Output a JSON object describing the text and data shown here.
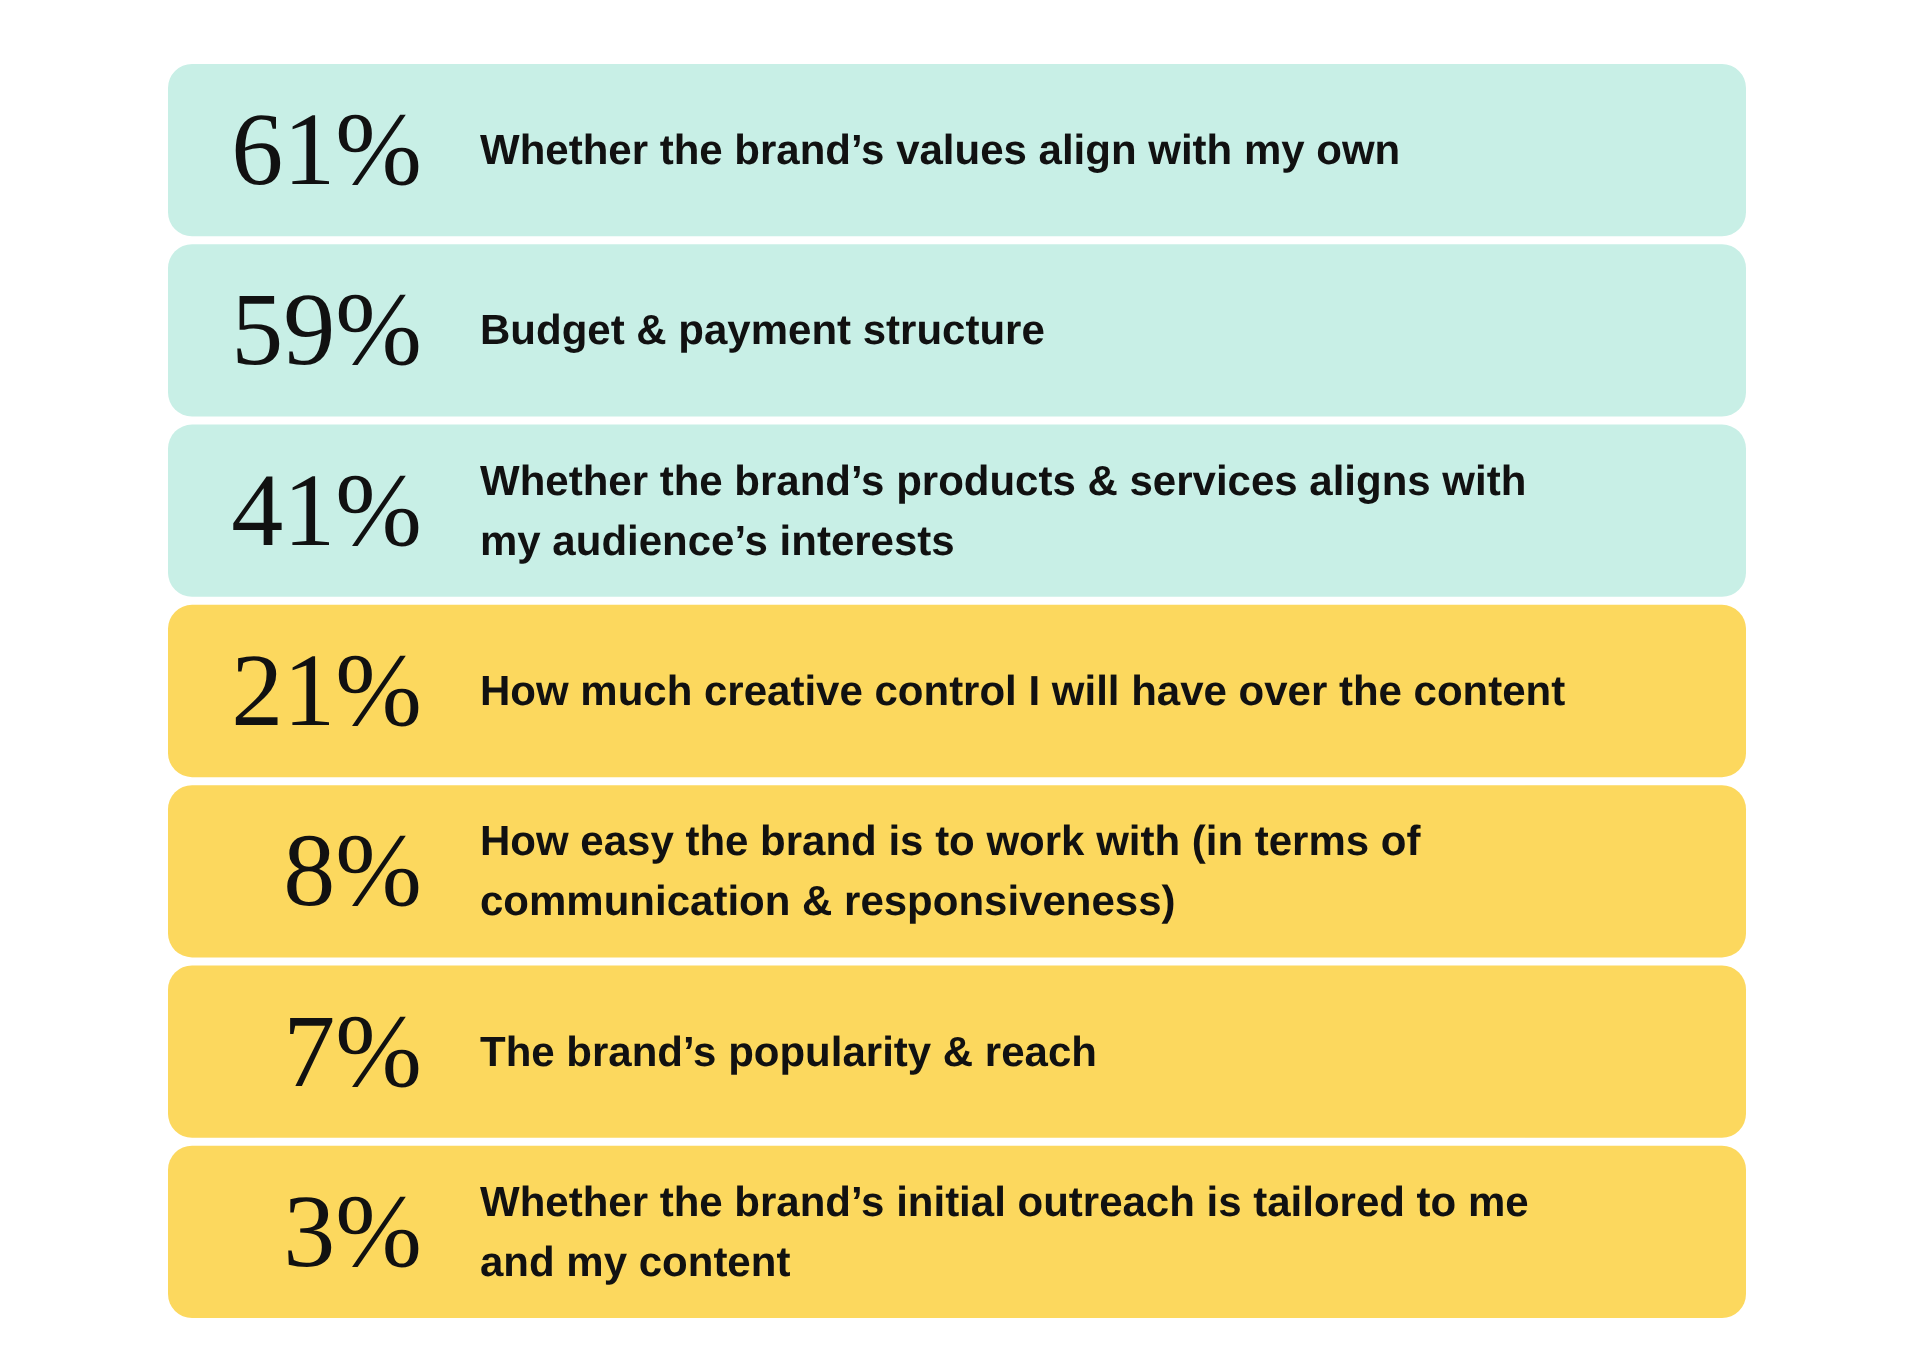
{
  "chart_data": {
    "type": "other",
    "categories": [
      "Whether the brand’s values align with my own",
      "Budget & payment structure",
      "Whether the brand’s products & services aligns with my audience’s interests",
      "How much creative control I will have over the content",
      "How easy the brand is to work with (in terms of communication & responsiveness)",
      "The brand’s popularity & reach",
      "Whether the brand’s initial outreach is tailored to me and my content"
    ],
    "values": [
      61,
      59,
      41,
      21,
      8,
      7,
      3
    ],
    "value_labels": [
      "61%",
      "59%",
      "41%",
      "21%",
      "8%",
      "7%",
      "3%"
    ],
    "colors": [
      "#c8efe6",
      "#c8efe6",
      "#c8efe6",
      "#fcd85e",
      "#fcd85e",
      "#fcd85e",
      "#fcd85e"
    ]
  }
}
